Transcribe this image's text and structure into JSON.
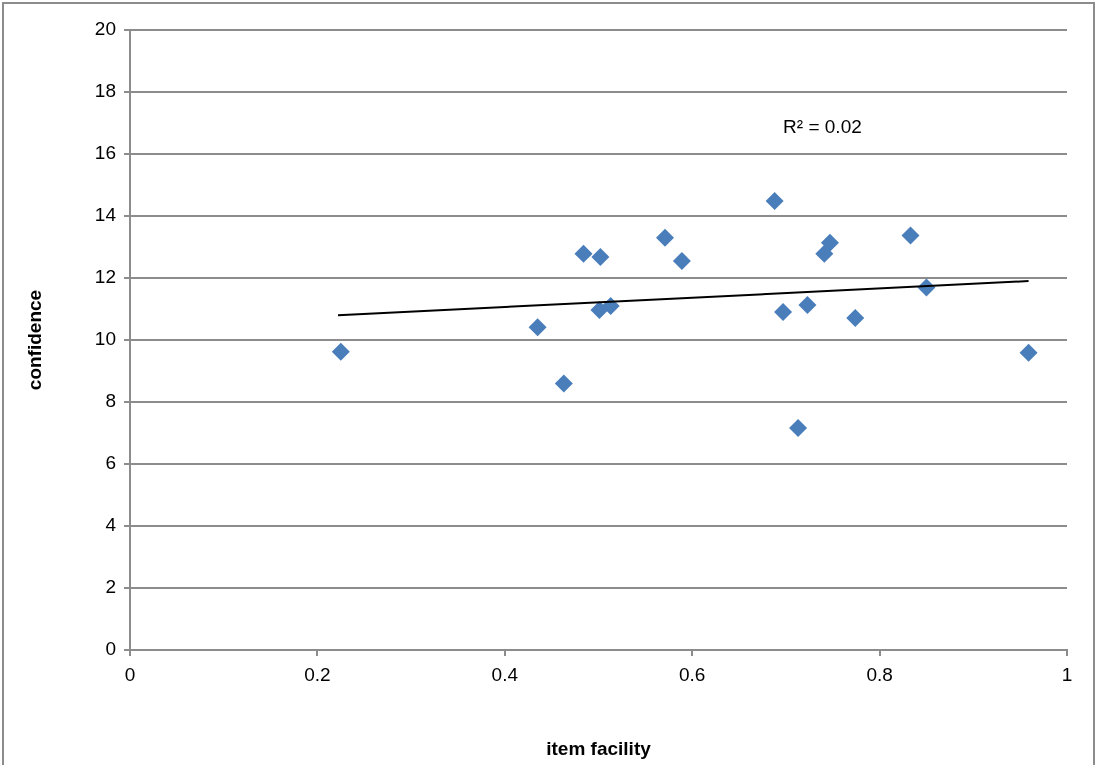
{
  "chart_data": {
    "type": "scatter",
    "xlabel": "item facility",
    "ylabel": "confidence",
    "annotations": [
      "R² = 0.02"
    ],
    "xlim": [
      0,
      1
    ],
    "xticks": [
      0,
      0.2,
      0.4,
      0.6,
      0.8,
      1
    ],
    "ylim": [
      0,
      20
    ],
    "yticks": [
      0,
      2,
      4,
      6,
      8,
      10,
      12,
      14,
      16,
      18,
      20
    ],
    "grid": "y",
    "marker": "diamond",
    "series": [
      {
        "color": "#4a7ebb",
        "x": [
          0.225,
          0.435,
          0.463,
          0.484,
          0.502,
          0.501,
          0.513,
          0.571,
          0.589,
          0.688,
          0.697,
          0.713,
          0.723,
          0.741,
          0.747,
          0.774,
          0.833,
          0.85,
          0.959
        ],
        "values": [
          9.62,
          10.41,
          8.6,
          12.78,
          12.68,
          10.97,
          11.1,
          13.3,
          12.55,
          14.48,
          10.9,
          7.16,
          11.13,
          12.78,
          13.14,
          10.71,
          13.37,
          11.69,
          9.59
        ]
      },
      {
        "type": "line",
        "color": "#000000",
        "marker": "none",
        "x": [
          0.222,
          0.959
        ],
        "values": [
          10.8,
          11.9
        ]
      }
    ]
  }
}
